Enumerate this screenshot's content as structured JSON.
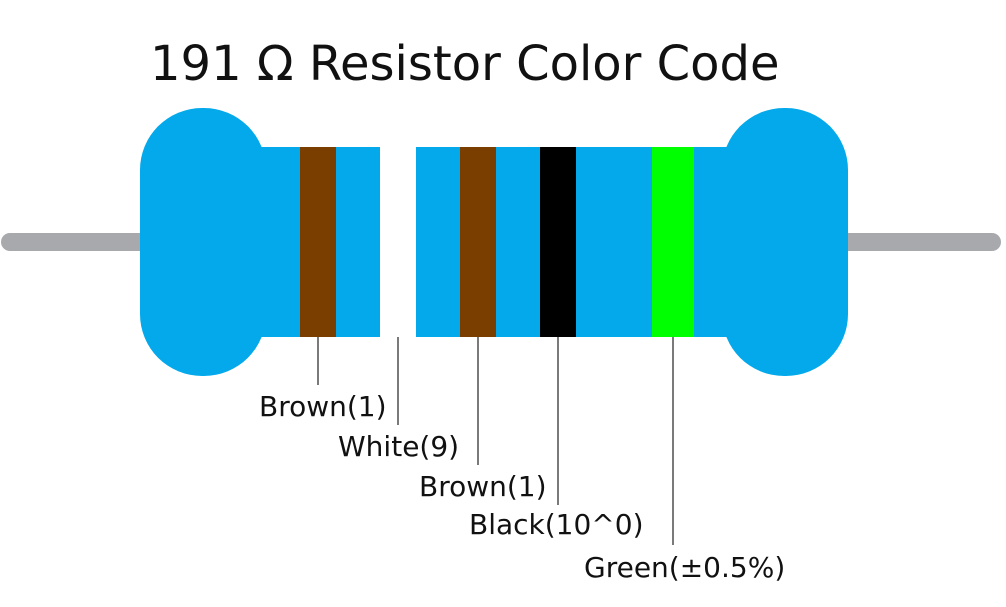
{
  "title": "191 Ω Resistor Color Code",
  "bands": [
    {
      "label": "Brown(1)",
      "color": "#7a3f00"
    },
    {
      "label": "White(9)",
      "color": "#ffffff"
    },
    {
      "label": "Brown(1)",
      "color": "#7a3f00"
    },
    {
      "label": "Black(10^0)",
      "color": "#000000"
    },
    {
      "label": "Green(±0.5%)",
      "color": "#00ff00"
    }
  ]
}
